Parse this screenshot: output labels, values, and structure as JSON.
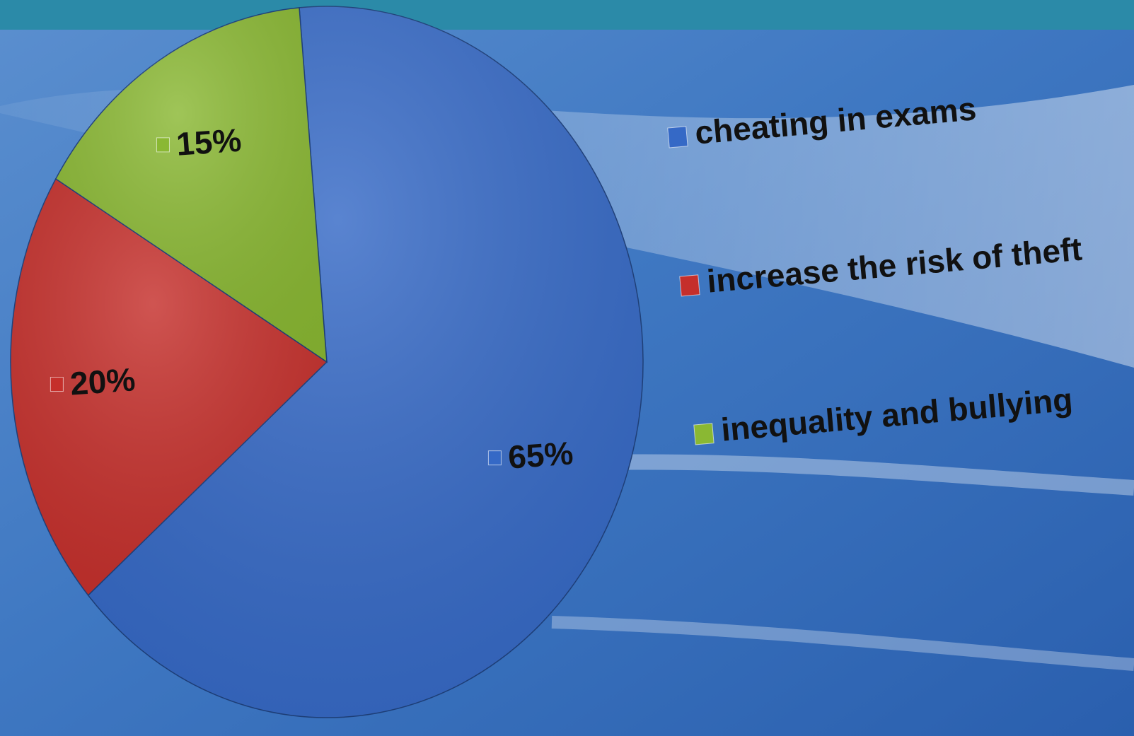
{
  "chart_data": {
    "type": "pie",
    "categories": [
      "cheating in exams",
      "increase the risk of theft",
      "inequality and bullying"
    ],
    "values": [
      65,
      20,
      15
    ],
    "value_labels": [
      "65%",
      "20%",
      "15%"
    ],
    "colors": [
      "#3569c6",
      "#c52f2b",
      "#8ab833"
    ],
    "legend": "right"
  }
}
